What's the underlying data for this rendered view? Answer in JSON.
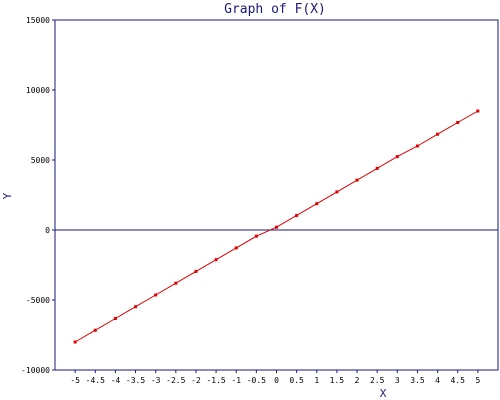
{
  "chart_data": {
    "type": "line",
    "title": "Graph of F(X)",
    "xlabel": "X",
    "ylabel": "Y",
    "xlim": [
      -5.5,
      5.5
    ],
    "ylim": [
      -10000,
      15000
    ],
    "x_ticks": [
      -5,
      -4.5,
      -4,
      -3.5,
      -3,
      -2.5,
      -2,
      -1.5,
      -1,
      -0.5,
      0,
      0.5,
      1,
      1.5,
      2,
      2.5,
      3,
      3.5,
      4,
      4.5,
      5
    ],
    "x_tick_labels": [
      "-5",
      "-4.5",
      "-4",
      "-3.5",
      "-3",
      "-2.5",
      "-2",
      "-1.5",
      "-1",
      "-0.5",
      "0",
      "0.5",
      "1",
      "1.5",
      "2",
      "2.5",
      "3",
      "3.5",
      "4",
      "4.5",
      "5"
    ],
    "y_ticks": [
      -10000,
      -5000,
      0,
      5000,
      10000,
      15000
    ],
    "y_tick_labels": [
      "-10000",
      "-5000",
      "0",
      "5000",
      "10000",
      "15000"
    ],
    "zero_line": true,
    "grid": false,
    "series": [
      {
        "color": "#e00000",
        "x": [
          -5,
          -4.5,
          -4,
          -3.5,
          -3,
          -2.5,
          -2,
          -1.5,
          -1,
          -0.5,
          0,
          0.5,
          1,
          1.5,
          2,
          2.5,
          3,
          3.5,
          4,
          4.5,
          5
        ],
        "y": [
          -8000,
          -7160,
          -6320,
          -5480,
          -4640,
          -3800,
          -2960,
          -2120,
          -1280,
          -440,
          200,
          1040,
          1880,
          2720,
          3560,
          4400,
          5240,
          6000,
          6840,
          7680,
          8500
        ]
      }
    ],
    "axis_color": "#1a1a7a"
  }
}
